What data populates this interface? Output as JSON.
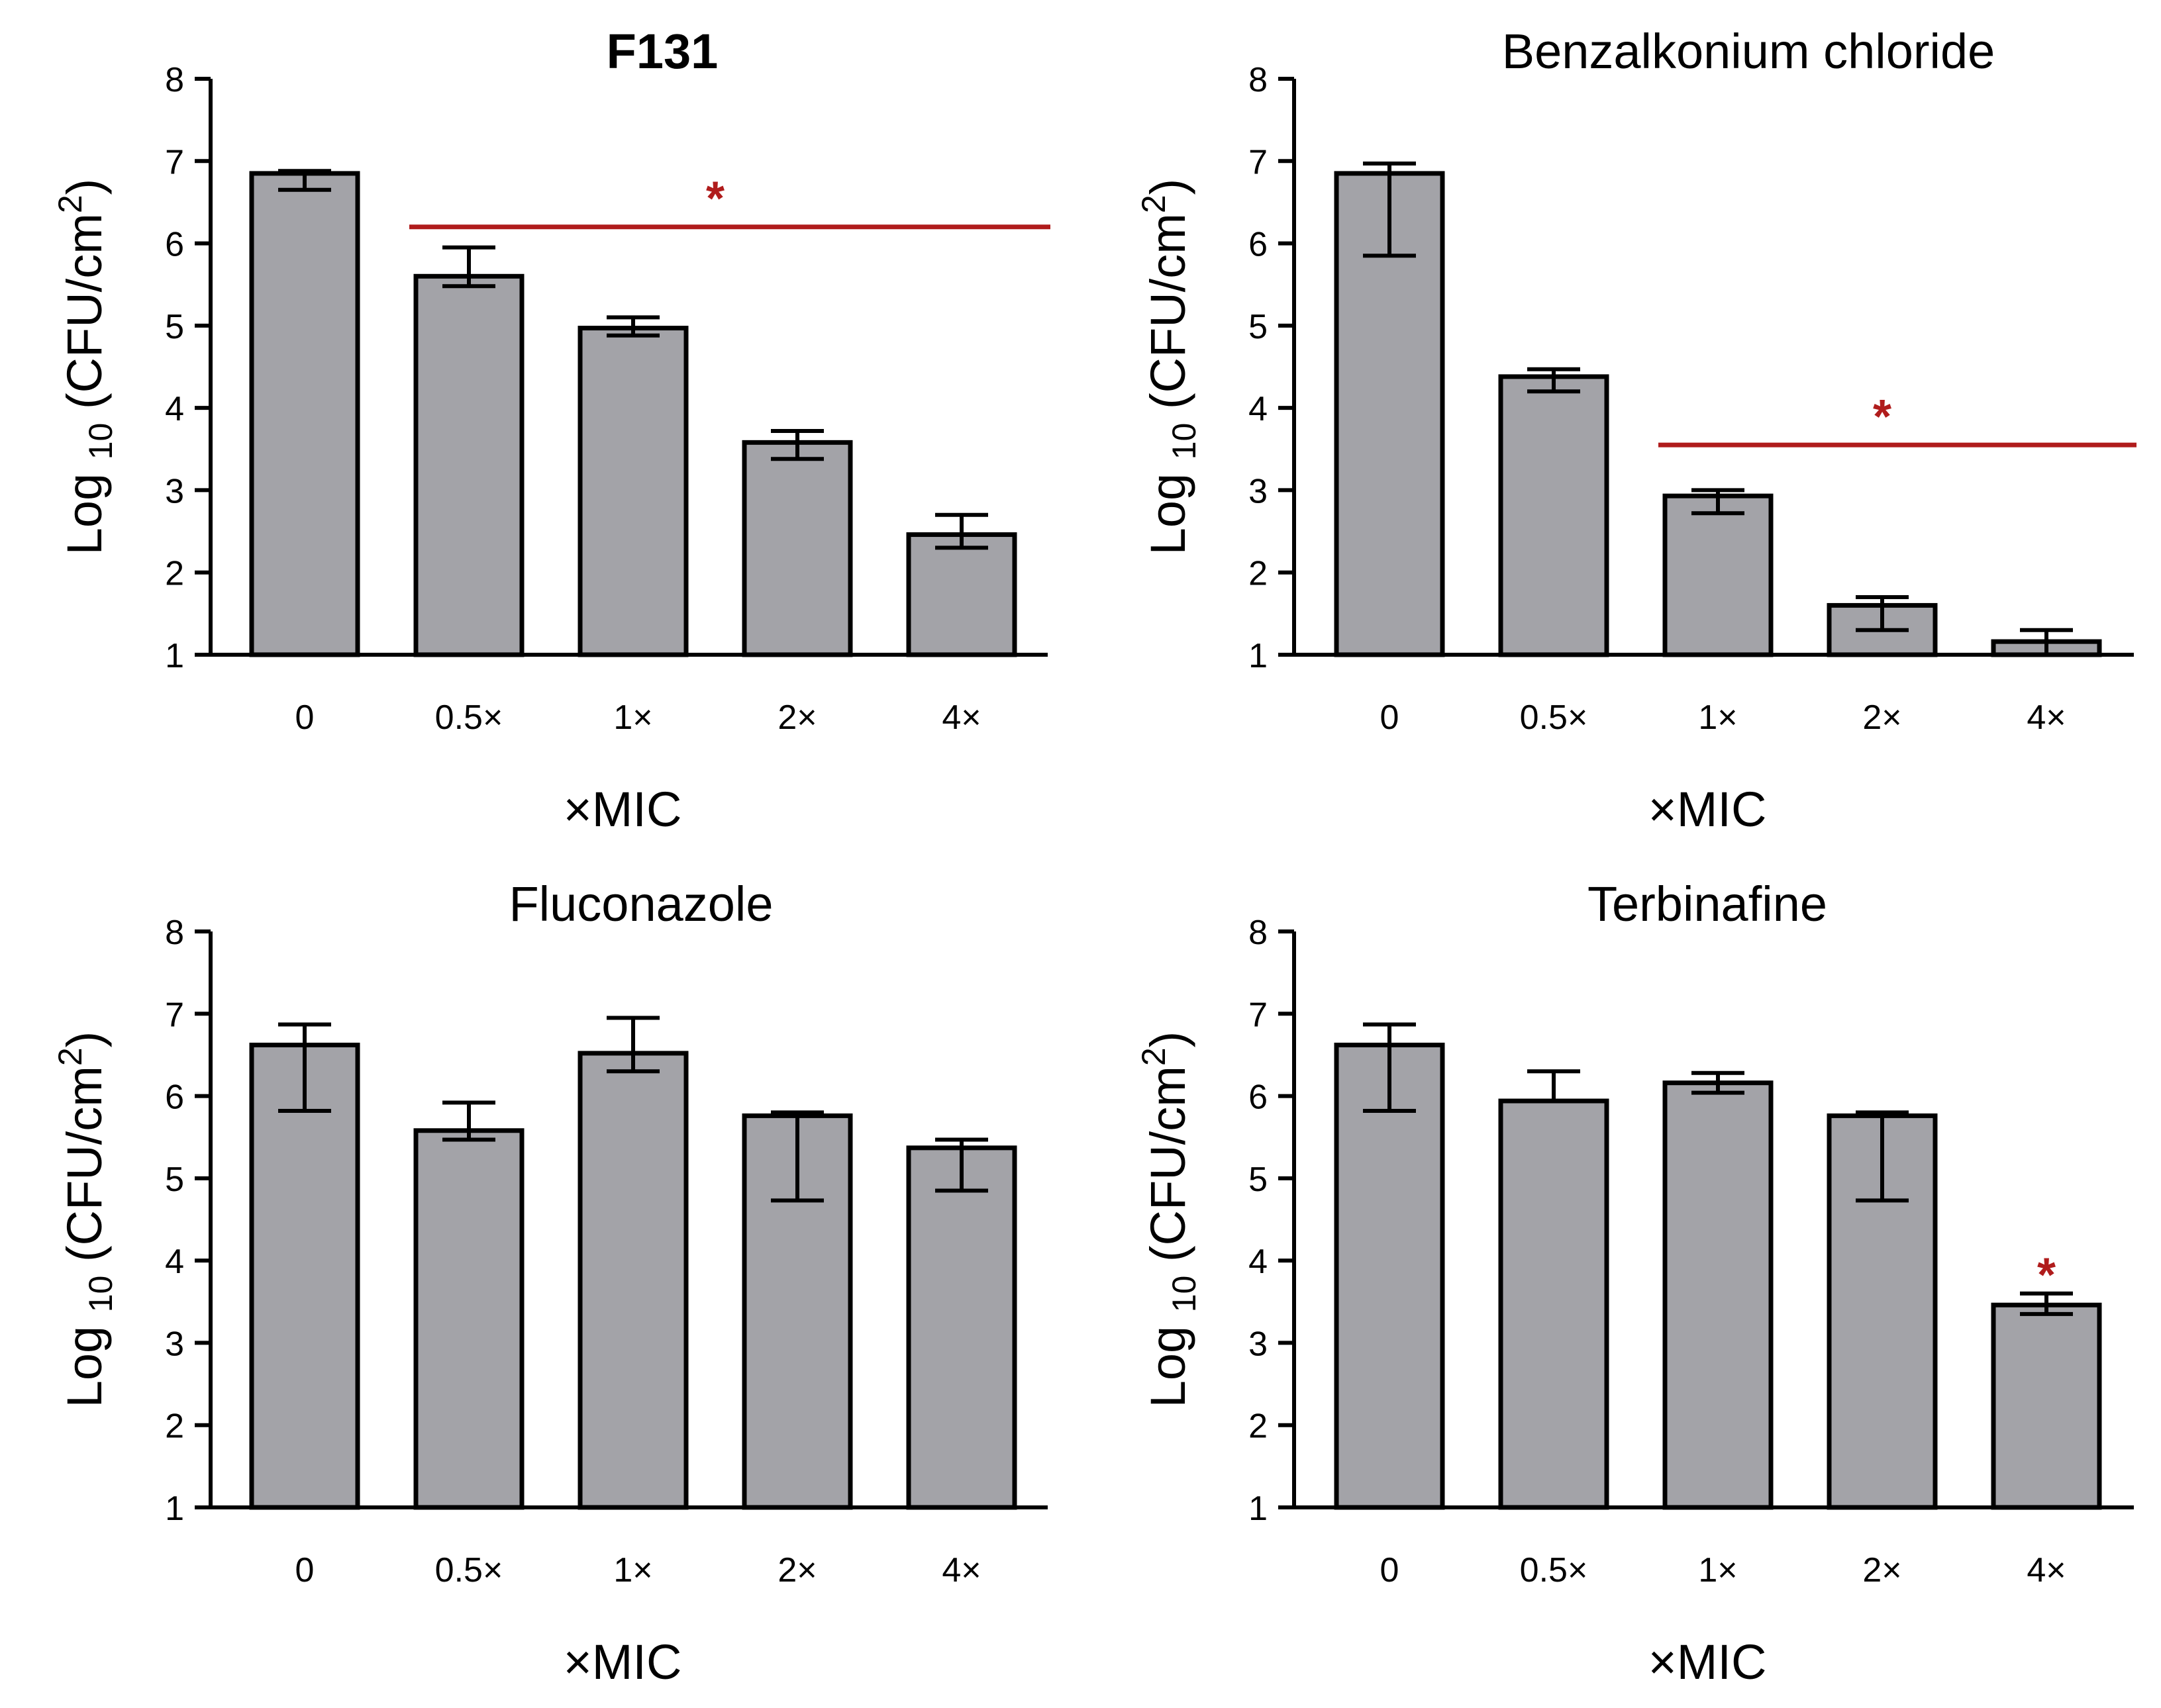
{
  "chart_data": [
    {
      "type": "bar",
      "title": "F131",
      "title_bold": true,
      "categories": [
        "0",
        "0.5×",
        "1×",
        "2×",
        "4×"
      ],
      "values": [
        6.85,
        5.6,
        4.97,
        3.58,
        2.46
      ],
      "error_low": [
        6.65,
        5.48,
        4.88,
        3.38,
        2.3
      ],
      "error_high": [
        6.88,
        5.95,
        5.1,
        3.72,
        2.7
      ],
      "xlabel": "×MIC",
      "ylabel": "Log 10 (CFU/cm2)",
      "ylabel_parts": {
        "main": "Log",
        "subscript": "10",
        "unit": "(CFU/cm",
        "superscript": "2",
        "close": ")"
      },
      "ylim": [
        1,
        8
      ],
      "yticks": [
        "1",
        "2",
        "3",
        "4",
        "5",
        "6",
        "7",
        "8"
      ],
      "significance": {
        "type": "line",
        "from_index": 1,
        "to_index": 4,
        "y": 6.2,
        "label": "*"
      }
    },
    {
      "type": "bar",
      "title": "Benzalkonium chloride",
      "title_bold": false,
      "categories": [
        "0",
        "0.5×",
        "1×",
        "2×",
        "4×"
      ],
      "values": [
        6.85,
        4.38,
        2.93,
        1.6,
        1.16
      ],
      "error_low": [
        5.85,
        4.2,
        2.72,
        1.3,
        1.0
      ],
      "error_high": [
        6.97,
        4.47,
        3.0,
        1.7,
        1.3
      ],
      "xlabel": "×MIC",
      "ylabel": "Log 10 (CFU/cm2)",
      "ylabel_parts": {
        "main": "Log",
        "subscript": "10",
        "unit": "(CFU/cm",
        "superscript": "2",
        "close": ")"
      },
      "ylim": [
        1,
        8
      ],
      "yticks": [
        "1",
        "2",
        "3",
        "4",
        "5",
        "6",
        "7",
        "8"
      ],
      "significance": {
        "type": "line",
        "from_index": 2,
        "to_index": 4,
        "y": 3.55,
        "label": "*"
      }
    },
    {
      "type": "bar",
      "title": "Fluconazole",
      "title_bold": false,
      "categories": [
        "0",
        "0.5×",
        "1×",
        "2×",
        "4×"
      ],
      "values": [
        6.62,
        5.58,
        6.52,
        5.76,
        5.37
      ],
      "error_low": [
        5.82,
        5.47,
        6.3,
        4.73,
        4.85
      ],
      "error_high": [
        6.87,
        5.92,
        6.95,
        5.8,
        5.47
      ],
      "xlabel": "×MIC",
      "ylabel": "Log 10 (CFU/cm2)",
      "ylabel_parts": {
        "main": "Log",
        "subscript": "10",
        "unit": "(CFU/cm",
        "superscript": "2",
        "close": ")"
      },
      "ylim": [
        1,
        8
      ],
      "yticks": [
        "1",
        "2",
        "3",
        "4",
        "5",
        "6",
        "7",
        "8"
      ],
      "significance": null
    },
    {
      "type": "bar",
      "title": "Terbinafine",
      "title_bold": false,
      "categories": [
        "0",
        "0.5×",
        "1×",
        "2×",
        "4×"
      ],
      "values": [
        6.62,
        5.94,
        6.16,
        5.76,
        3.46
      ],
      "error_low": [
        5.82,
        5.94,
        6.04,
        4.73,
        3.35
      ],
      "error_high": [
        6.87,
        6.3,
        6.28,
        5.8,
        3.6
      ],
      "xlabel": "×MIC",
      "ylabel": "Log 10 (CFU/cm2)",
      "ylabel_parts": {
        "main": "Log",
        "subscript": "10",
        "unit": "(CFU/cm",
        "superscript": "2",
        "close": ")"
      },
      "ylim": [
        1,
        8
      ],
      "yticks": [
        "1",
        "2",
        "3",
        "4",
        "5",
        "6",
        "7",
        "8"
      ],
      "significance": {
        "type": "star",
        "index": 4,
        "y": 3.98,
        "label": "*"
      }
    }
  ],
  "colors": {
    "bar_fill": "#a3a3a8",
    "outline": "#000000",
    "significance": "#b01c1c"
  }
}
